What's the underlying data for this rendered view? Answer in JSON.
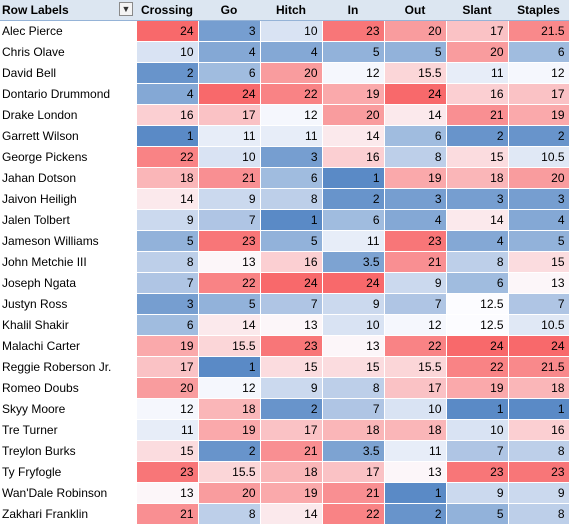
{
  "header": {
    "row_labels": "Row Labels",
    "filter_icon": "filter-dropdown-icon",
    "columns": [
      "Crossing",
      "Go",
      "Hitch",
      "In",
      "Out",
      "Slant",
      "Staples"
    ]
  },
  "rows": [
    {
      "name": "Alec Pierce",
      "values": [
        "24",
        "3",
        "10",
        "23",
        "20",
        "17",
        "21.5"
      ]
    },
    {
      "name": "Chris Olave",
      "values": [
        "10",
        "4",
        "4",
        "5",
        "5",
        "20",
        "6"
      ]
    },
    {
      "name": "David Bell",
      "values": [
        "2",
        "6",
        "20",
        "12",
        "15.5",
        "11",
        "12"
      ]
    },
    {
      "name": "Dontario Drummond",
      "values": [
        "4",
        "24",
        "22",
        "19",
        "24",
        "16",
        "17"
      ]
    },
    {
      "name": "Drake London",
      "values": [
        "16",
        "17",
        "12",
        "20",
        "14",
        "21",
        "19"
      ]
    },
    {
      "name": "Garrett Wilson",
      "values": [
        "1",
        "11",
        "11",
        "14",
        "6",
        "2",
        "2"
      ]
    },
    {
      "name": "George Pickens",
      "values": [
        "22",
        "10",
        "3",
        "16",
        "8",
        "15",
        "10.5"
      ]
    },
    {
      "name": "Jahan Dotson",
      "values": [
        "18",
        "21",
        "6",
        "1",
        "19",
        "18",
        "20"
      ]
    },
    {
      "name": "Jaivon Heiligh",
      "values": [
        "14",
        "9",
        "8",
        "2",
        "3",
        "3",
        "3"
      ]
    },
    {
      "name": "Jalen Tolbert",
      "values": [
        "9",
        "7",
        "1",
        "6",
        "4",
        "14",
        "4"
      ]
    },
    {
      "name": "Jameson Williams",
      "values": [
        "5",
        "23",
        "5",
        "11",
        "23",
        "4",
        "5"
      ]
    },
    {
      "name": "John Metchie III",
      "values": [
        "8",
        "13",
        "16",
        "3.5",
        "21",
        "8",
        "15"
      ]
    },
    {
      "name": "Joseph Ngata",
      "values": [
        "7",
        "22",
        "24",
        "24",
        "9",
        "6",
        "13"
      ]
    },
    {
      "name": "Justyn Ross",
      "values": [
        "3",
        "5",
        "7",
        "9",
        "7",
        "12.5",
        "7"
      ]
    },
    {
      "name": "Khalil Shakir",
      "values": [
        "6",
        "14",
        "13",
        "10",
        "12",
        "12.5",
        "10.5"
      ]
    },
    {
      "name": "Malachi Carter",
      "values": [
        "19",
        "15.5",
        "23",
        "13",
        "22",
        "24",
        "24"
      ]
    },
    {
      "name": "Reggie Roberson Jr.",
      "values": [
        "17",
        "1",
        "15",
        "15",
        "15.5",
        "22",
        "21.5"
      ]
    },
    {
      "name": "Romeo Doubs",
      "values": [
        "20",
        "12",
        "9",
        "8",
        "17",
        "19",
        "18"
      ]
    },
    {
      "name": "Skyy Moore",
      "values": [
        "12",
        "18",
        "2",
        "7",
        "10",
        "1",
        "1"
      ]
    },
    {
      "name": "Tre Turner",
      "values": [
        "11",
        "19",
        "17",
        "18",
        "18",
        "10",
        "16"
      ]
    },
    {
      "name": "Treylon Burks",
      "values": [
        "15",
        "2",
        "21",
        "3.5",
        "11",
        "7",
        "8"
      ]
    },
    {
      "name": "Ty Fryfogle",
      "values": [
        "23",
        "15.5",
        "18",
        "17",
        "13",
        "23",
        "23"
      ]
    },
    {
      "name": "Wan'Dale Robinson",
      "values": [
        "13",
        "20",
        "19",
        "21",
        "1",
        "9",
        "9"
      ]
    },
    {
      "name": "Zakhari Franklin",
      "values": [
        "21",
        "8",
        "14",
        "22",
        "2",
        "5",
        "8"
      ]
    }
  ],
  "color_scale": {
    "low": "#5a8ac6",
    "mid": "#fcfcff",
    "high": "#f8696b",
    "min": 1,
    "max": 24
  }
}
